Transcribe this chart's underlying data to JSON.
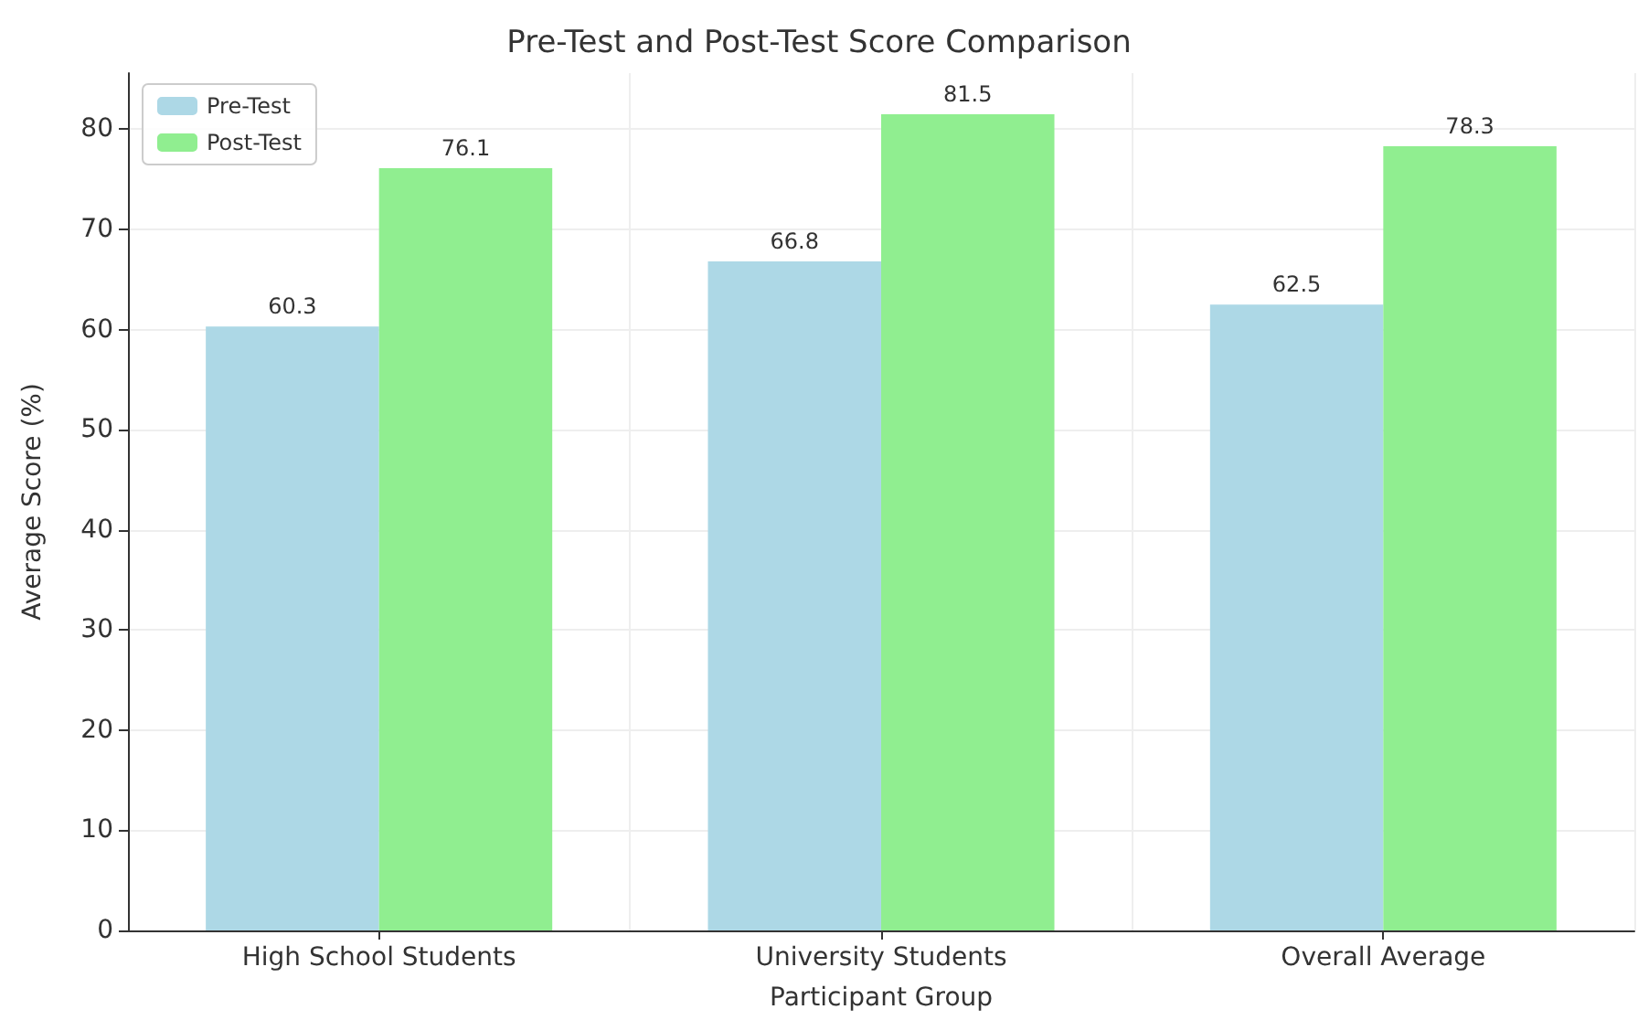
{
  "chart_data": {
    "type": "bar",
    "title": "Pre-Test and Post-Test Score Comparison",
    "xlabel": "Participant Group",
    "ylabel": "Average Score (%)",
    "categories": [
      "High School Students",
      "University Students",
      "Overall Average"
    ],
    "series": [
      {
        "name": "Pre-Test",
        "color": "#add8e6",
        "values": [
          60.3,
          66.8,
          62.5
        ]
      },
      {
        "name": "Post-Test",
        "color": "#90ee90",
        "values": [
          76.1,
          81.5,
          78.3
        ]
      }
    ],
    "ylim": [
      0,
      85.6
    ],
    "yticks": [
      0,
      10,
      20,
      30,
      40,
      50,
      60,
      70,
      80
    ],
    "grid": true,
    "legend": "top left",
    "data_labels": true
  }
}
